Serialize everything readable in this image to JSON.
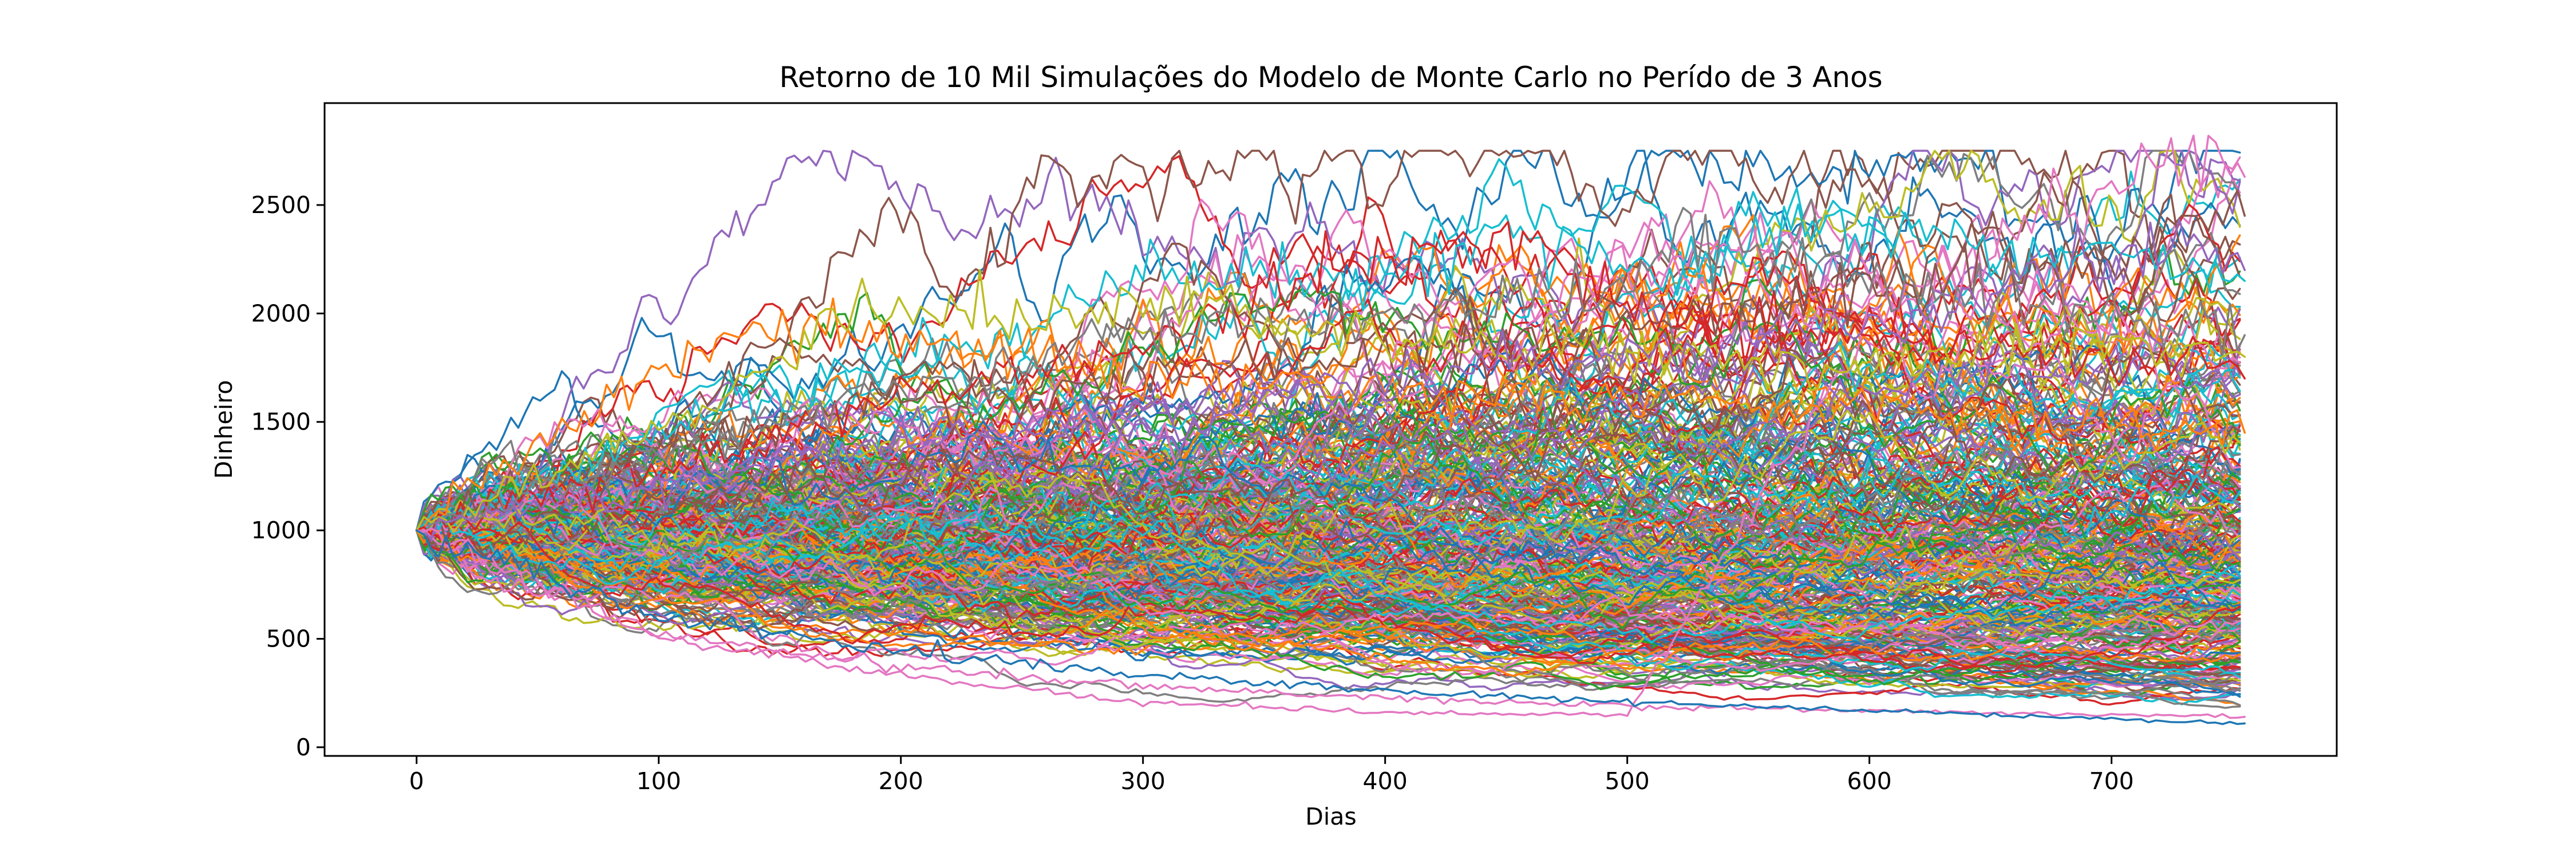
{
  "chart_data": {
    "type": "line",
    "title": "Retorno de 10 Mil Simulações do Modelo de Monte Carlo no Perído de 3 Anos",
    "xlabel": "Dias",
    "ylabel": "Dinheiro",
    "xlim": [
      -38,
      793
    ],
    "ylim": [
      -40,
      2970
    ],
    "xticks": [
      0,
      100,
      200,
      300,
      400,
      500,
      600,
      700
    ],
    "yticks": [
      0,
      500,
      1000,
      1500,
      2000,
      2500
    ],
    "grid": false,
    "legend": "none",
    "n_simulations": 10000,
    "n_days": 756,
    "start_value": 1000,
    "series_colors": [
      "#1f77b4",
      "#ff7f0e",
      "#2ca02c",
      "#d62728",
      "#9467bd",
      "#8c564b",
      "#e377c2",
      "#7f7f7f",
      "#bcbd22",
      "#17becf"
    ],
    "highlighted_paths": [
      {
        "color": "#e377c2",
        "x": [
          0,
          100,
          200,
          300,
          400,
          500,
          600,
          640,
          700,
          740,
          755
        ],
        "y": [
          1000,
          500,
          330,
          210,
          160,
          150,
          1950,
          2250,
          2650,
          2750,
          2630
        ]
      },
      {
        "color": "#8c564b",
        "x": [
          0,
          100,
          200,
          300,
          400,
          500,
          600,
          700,
          740,
          755
        ],
        "y": [
          1000,
          1400,
          1600,
          1750,
          1800,
          1950,
          2100,
          2250,
          2400,
          2450
        ]
      },
      {
        "color": "#17becf",
        "x": [
          0,
          100,
          200,
          260,
          300,
          400,
          450,
          500,
          550,
          600,
          650,
          700,
          755
        ],
        "y": [
          1000,
          1450,
          1800,
          1950,
          2200,
          2150,
          2400,
          2200,
          2300,
          2400,
          2250,
          2300,
          2150
        ]
      },
      {
        "color": "#ff7f0e",
        "x": [
          0,
          60,
          100,
          130,
          160,
          190,
          250,
          300,
          400,
          500,
          600,
          700,
          755
        ],
        "y": [
          1000,
          1500,
          1700,
          1950,
          1950,
          1900,
          1800,
          1700,
          1650,
          1600,
          1550,
          1500,
          1450
        ]
      },
      {
        "color": "#d62728",
        "x": [
          0,
          100,
          200,
          300,
          360,
          400,
          420,
          460,
          500,
          600,
          700,
          755
        ],
        "y": [
          1000,
          1300,
          1600,
          1850,
          2100,
          2300,
          2300,
          2350,
          2000,
          1900,
          1800,
          1700
        ]
      },
      {
        "color": "#7f7f7f",
        "x": [
          0,
          100,
          200,
          300,
          400,
          500,
          520,
          560,
          600,
          700,
          755
        ],
        "y": [
          1000,
          1350,
          1650,
          1900,
          2000,
          2100,
          2450,
          2250,
          2150,
          2000,
          1900
        ]
      },
      {
        "color": "#bcbd22",
        "x": [
          0,
          100,
          190,
          260,
          300,
          400,
          500,
          600,
          700,
          755
        ],
        "y": [
          1000,
          1450,
          2050,
          1950,
          2100,
          1900,
          1850,
          1750,
          1900,
          1800
        ]
      },
      {
        "color": "#9467bd",
        "x": [
          0,
          100,
          200,
          300,
          400,
          500,
          600,
          680,
          740,
          755
        ],
        "y": [
          1000,
          1200,
          1400,
          1550,
          1700,
          1800,
          1950,
          2200,
          2300,
          2200
        ]
      },
      {
        "color": "#e377c2",
        "x": [
          0,
          100,
          200,
          300,
          400,
          500,
          600,
          700,
          755
        ],
        "y": [
          1000,
          520,
          370,
          280,
          230,
          190,
          170,
          150,
          140
        ]
      },
      {
        "color": "#1f77b4",
        "x": [
          0,
          100,
          200,
          300,
          400,
          500,
          600,
          700,
          755
        ],
        "y": [
          1000,
          600,
          450,
          330,
          260,
          210,
          170,
          130,
          110
        ]
      }
    ]
  }
}
